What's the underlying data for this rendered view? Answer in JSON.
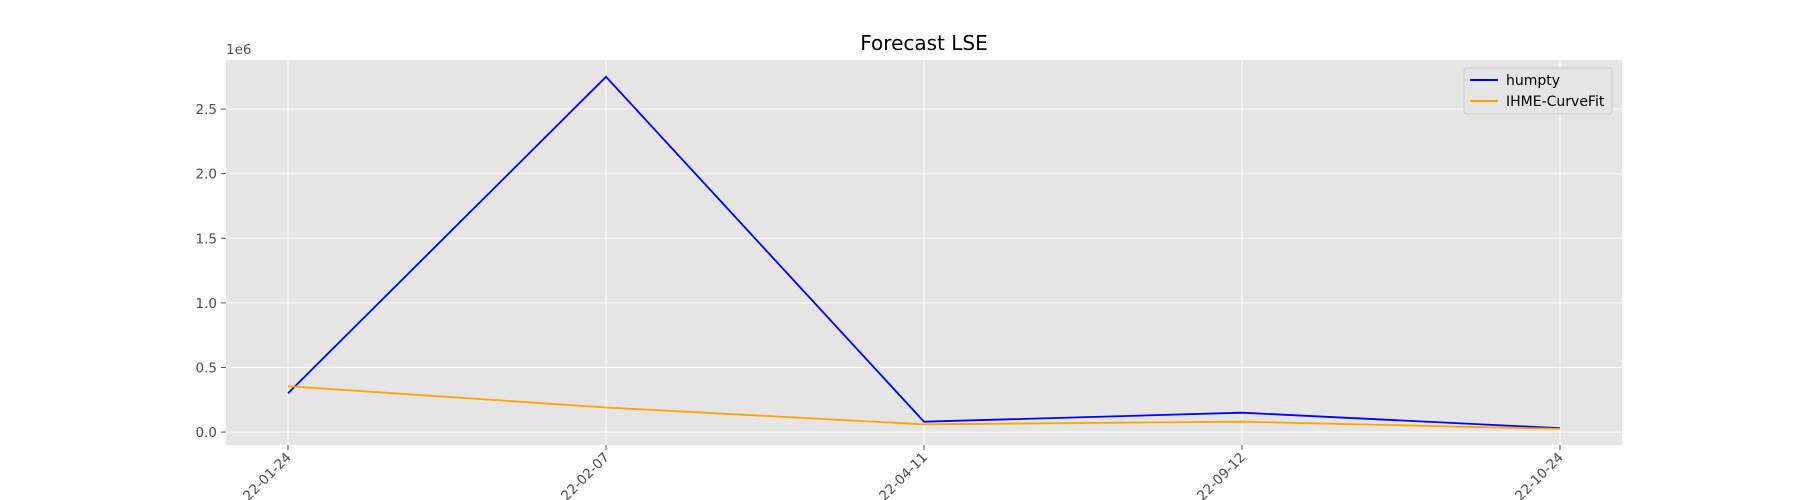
{
  "chart_data": {
    "type": "line",
    "title": "Forecast LSE",
    "xlabel": "",
    "ylabel": "",
    "x": [
      "2022-01-24",
      "2022-02-07",
      "2022-04-11",
      "2022-09-12",
      "2022-10-24"
    ],
    "x_tick_labels": [
      "22-01-24",
      "22-02-07",
      "22-04-11",
      "22-09-12",
      "22-10-24"
    ],
    "y_offset_label": "1e6",
    "y_ticks": [
      0.0,
      0.5,
      1.0,
      1.5,
      2.0,
      2.5
    ],
    "y_tick_labels": [
      "0.0",
      "0.5",
      "1.0",
      "1.5",
      "2.0",
      "2.5"
    ],
    "ylim": [
      -0.1,
      2.88
    ],
    "grid": true,
    "legend_position": "top-right",
    "series": [
      {
        "name": "humpty",
        "color": "#0000ff",
        "values": [
          0.3,
          2.75,
          0.08,
          0.15,
          0.03
        ]
      },
      {
        "name": "IHME-CurveFit",
        "color": "#ffa500",
        "values": [
          0.355,
          0.19,
          0.06,
          0.08,
          0.025
        ]
      }
    ]
  }
}
